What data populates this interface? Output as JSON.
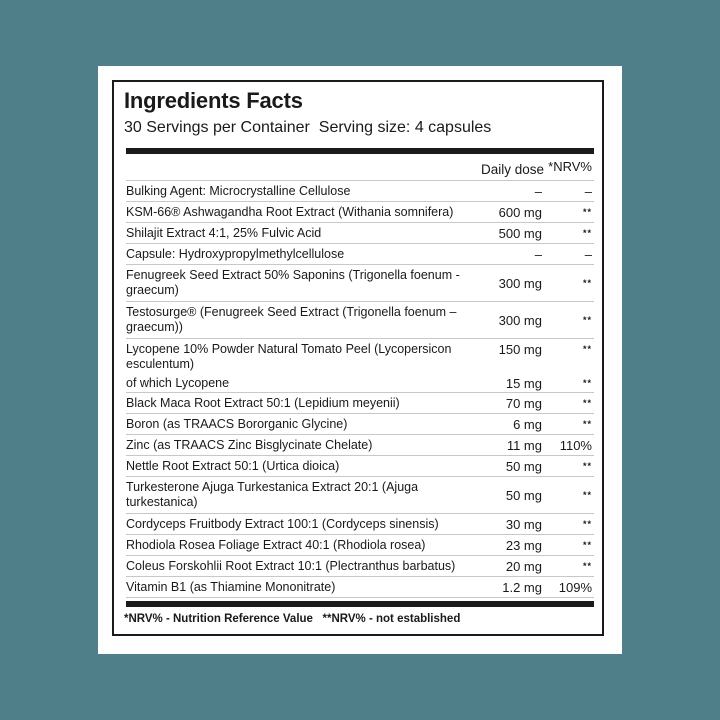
{
  "colors": {
    "background": "#4f7f88",
    "panel": "#ffffff",
    "text": "#1a1a1a"
  },
  "title": "Ingredients Facts",
  "servings": "30 Servings per Container  Serving size: 4 capsules",
  "header": {
    "dose": "Daily dose",
    "nrv": "*NRV%"
  },
  "rows": [
    {
      "name": "Bulking Agent: Microcrystalline Cellulose",
      "dose": "–",
      "nrv": "–"
    },
    {
      "name": "KSM-66® Ashwagandha Root Extract (Withania somnifera)",
      "dose": "600 mg",
      "nrv": "**"
    },
    {
      "name": "Shilajit Extract 4:1, 25% Fulvic Acid",
      "dose": "500 mg",
      "nrv": "**"
    },
    {
      "name": "Capsule: Hydroxypropylmethylcellulose",
      "dose": "–",
      "nrv": "–"
    },
    {
      "name": "Fenugreek Seed Extract 50% Saponins (Trigonella foenum - graecum)",
      "dose": "300 mg",
      "nrv": "**"
    },
    {
      "name": "Testosurge® (Fenugreek Seed Extract (Trigonella foenum – graecum))",
      "dose": "300 mg",
      "nrv": "**"
    },
    {
      "name": "Lycopene 10% Powder Natural Tomato Peel (Lycopersicon esculentum)",
      "dose": "150 mg",
      "nrv": "**"
    },
    {
      "name": "of which Lycopene",
      "dose": "15 mg",
      "nrv": "**"
    },
    {
      "name": "Black Maca Root Extract 50:1 (Lepidium meyenii)",
      "dose": "70 mg",
      "nrv": "**"
    },
    {
      "name": "Boron (as TRAACS Bororganic Glycine)",
      "dose": "6 mg",
      "nrv": "**"
    },
    {
      "name": "Zinc (as TRAACS Zinc Bisglycinate Chelate)",
      "dose": "11 mg",
      "nrv": "110%"
    },
    {
      "name": "Nettle Root Extract 50:1 (Urtica dioica)",
      "dose": "50 mg",
      "nrv": "**"
    },
    {
      "name": "Turkesterone Ajuga Turkestanica Extract 20:1 (Ajuga turkestanica)",
      "dose": "50 mg",
      "nrv": "**"
    },
    {
      "name": "Cordyceps Fruitbody Extract 100:1 (Cordyceps sinensis)",
      "dose": "30 mg",
      "nrv": "**"
    },
    {
      "name": "Rhodiola Rosea Foliage Extract 40:1 (Rhodiola rosea)",
      "dose": "23 mg",
      "nrv": "**"
    },
    {
      "name": "Coleus Forskohlii Root Extract 10:1 (Plectranthus barbatus)",
      "dose": "20 mg",
      "nrv": "**"
    },
    {
      "name": "Vitamin B1 (as Thiamine Mononitrate)",
      "dose": "1.2 mg",
      "nrv": "109%"
    }
  ],
  "footnote": "*NRV% - Nutrition Reference Value   **NRV% - not established"
}
